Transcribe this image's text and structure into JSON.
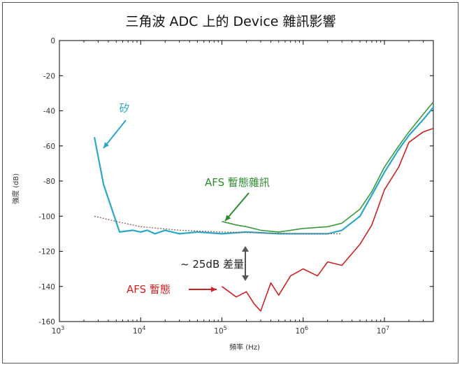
{
  "chart_data": {
    "type": "line",
    "title": "三角波 ADC 上的 Device 雜訊影響",
    "xlabel": "頻率 (Hz)",
    "ylabel": "強度 (dB)",
    "x_scale": "log",
    "xlim": [
      1000,
      40000000
    ],
    "ylim": [
      -160,
      0
    ],
    "x_ticks": [
      {
        "value": 1000,
        "base": "10",
        "exp": "3"
      },
      {
        "value": 10000,
        "base": "10",
        "exp": "4"
      },
      {
        "value": 100000,
        "base": "10",
        "exp": "5"
      },
      {
        "value": 1000000,
        "base": "10",
        "exp": "6"
      },
      {
        "value": 10000000,
        "base": "10",
        "exp": "7"
      }
    ],
    "y_ticks": [
      0,
      -20,
      -40,
      -60,
      -80,
      -100,
      -120,
      -140,
      -160
    ],
    "grid": false,
    "series": [
      {
        "name": "矽",
        "color": "#2aa7c9",
        "x": [
          2700,
          3500,
          5500,
          8000,
          10000,
          12000,
          15000,
          20000,
          30000,
          50000,
          100000,
          200000,
          500000,
          1000000,
          2000000,
          3000000,
          5000000,
          7000000,
          10000000,
          15000000,
          20000000,
          30000000,
          40000000
        ],
        "y": [
          -55,
          -82,
          -109,
          -108,
          -109,
          -108,
          -110,
          -108,
          -110,
          -109,
          -110,
          -109,
          -110,
          -110,
          -110,
          -108,
          -100,
          -88,
          -75,
          -62,
          -54,
          -45,
          -38
        ]
      },
      {
        "name": "AFS 暫態雜訊",
        "color": "#3a9a3a",
        "x": [
          100000,
          150000,
          200000,
          300000,
          500000,
          1000000,
          2000000,
          3000000,
          5000000,
          7000000,
          10000000,
          15000000,
          20000000,
          30000000,
          40000000
        ],
        "y": [
          -103,
          -105,
          -106,
          -108,
          -109,
          -107,
          -106,
          -104,
          -96,
          -86,
          -72,
          -60,
          -52,
          -42,
          -35
        ]
      },
      {
        "name": "AFS 暫態",
        "color": "#cc2222",
        "x": [
          100000,
          150000,
          200000,
          250000,
          300000,
          400000,
          500000,
          700000,
          1000000,
          1500000,
          2000000,
          3000000,
          5000000,
          7000000,
          10000000,
          15000000,
          20000000,
          30000000,
          40000000
        ],
        "y": [
          -140,
          -146,
          -143,
          -150,
          -154,
          -138,
          -145,
          -134,
          -130,
          -134,
          -126,
          -128,
          -116,
          -105,
          -85,
          -72,
          -58,
          -52,
          -50
        ]
      },
      {
        "name": "",
        "color": "#8b6a5a",
        "style": "dotted",
        "x": [
          2700,
          5000,
          10000,
          30000,
          100000,
          300000,
          1000000,
          3000000
        ],
        "y": [
          -100,
          -103,
          -106,
          -108,
          -109,
          -109.5,
          -110,
          -110
        ]
      }
    ],
    "annotations": [
      {
        "text": "矽",
        "color": "#2aa7c9"
      },
      {
        "text": "AFS 暫態雜訊",
        "color": "#2e8b2e"
      },
      {
        "text": "AFS 暫態",
        "color": "#cc2222"
      },
      {
        "text": "~ 25dB 差量",
        "color": "#222222"
      }
    ]
  }
}
